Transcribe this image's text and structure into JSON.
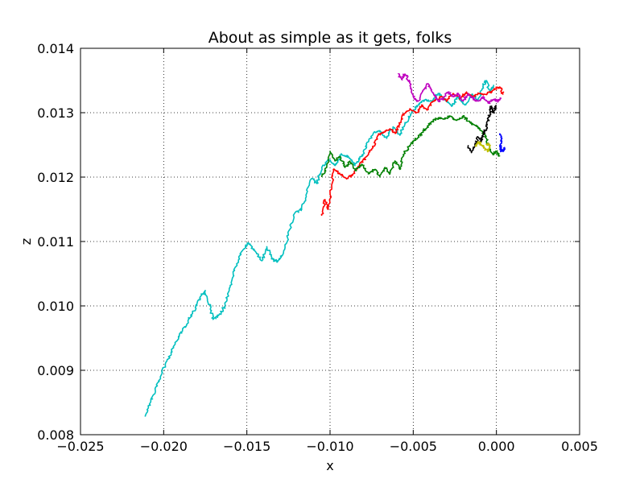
{
  "chart_data": {
    "type": "line",
    "title": "About as simple as it gets, folks",
    "xlabel": "x",
    "ylabel": "z",
    "xlim": [
      -0.025,
      0.005
    ],
    "ylim": [
      0.008,
      0.014
    ],
    "x_ticks": [
      -0.025,
      -0.02,
      -0.015,
      -0.01,
      -0.005,
      0.0,
      0.005
    ],
    "x_tick_labels": [
      "−0.025",
      "−0.020",
      "−0.015",
      "−0.010",
      "−0.005",
      "0.000",
      "0.005"
    ],
    "y_ticks": [
      0.008,
      0.009,
      0.01,
      0.011,
      0.012,
      0.013,
      0.014
    ],
    "y_tick_labels": [
      "0.008",
      "0.009",
      "0.010",
      "0.011",
      "0.012",
      "0.013",
      "0.014"
    ],
    "grid": true,
    "grid_style": "dotted",
    "series": [
      {
        "color": "#00bfbf",
        "points": [
          [
            -0.0211,
            0.00828
          ],
          [
            -0.0208,
            0.0085
          ],
          [
            -0.0205,
            0.00868
          ],
          [
            -0.0202,
            0.0089
          ],
          [
            -0.0198,
            0.00915
          ],
          [
            -0.0194,
            0.00935
          ],
          [
            -0.019,
            0.00958
          ],
          [
            -0.0186,
            0.00972
          ],
          [
            -0.0182,
            0.00992
          ],
          [
            -0.0178,
            0.01012
          ],
          [
            -0.0175,
            0.01024
          ],
          [
            -0.0172,
            0.00995
          ],
          [
            -0.017,
            0.0098
          ],
          [
            -0.0167,
            0.00985
          ],
          [
            -0.0163,
            0.01
          ],
          [
            -0.016,
            0.01032
          ],
          [
            -0.0157,
            0.0106
          ],
          [
            -0.0153,
            0.01085
          ],
          [
            -0.0149,
            0.01098
          ],
          [
            -0.0145,
            0.01085
          ],
          [
            -0.0141,
            0.0107
          ],
          [
            -0.0138,
            0.01092
          ],
          [
            -0.0135,
            0.01075
          ],
          [
            -0.0132,
            0.01068
          ],
          [
            -0.0128,
            0.01082
          ],
          [
            -0.0125,
            0.0111
          ],
          [
            -0.0121,
            0.01145
          ],
          [
            -0.0117,
            0.0115
          ],
          [
            -0.0114,
            0.01175
          ],
          [
            -0.0111,
            0.01198
          ],
          [
            -0.0108,
            0.0119
          ],
          [
            -0.0105,
            0.01215
          ],
          [
            -0.0101,
            0.01228
          ],
          [
            -0.0097,
            0.01218
          ],
          [
            -0.0093,
            0.01235
          ],
          [
            -0.0089,
            0.01232
          ],
          [
            -0.0085,
            0.01218
          ],
          [
            -0.0081,
            0.01232
          ],
          [
            -0.0078,
            0.0125
          ],
          [
            -0.0074,
            0.01268
          ],
          [
            -0.007,
            0.01272
          ],
          [
            -0.0066,
            0.0126
          ],
          [
            -0.0062,
            0.01278
          ],
          [
            -0.0058,
            0.01265
          ],
          [
            -0.0055,
            0.01282
          ],
          [
            -0.0051,
            0.013
          ],
          [
            -0.0047,
            0.01312
          ],
          [
            -0.0043,
            0.0132
          ],
          [
            -0.0039,
            0.01318
          ],
          [
            -0.0035,
            0.0133
          ],
          [
            -0.0031,
            0.01322
          ],
          [
            -0.0027,
            0.0131
          ],
          [
            -0.0023,
            0.01325
          ],
          [
            -0.0019,
            0.01312
          ],
          [
            -0.0015,
            0.01328
          ],
          [
            -0.0011,
            0.0132
          ],
          [
            -0.0008,
            0.0134
          ],
          [
            -0.0006,
            0.0135
          ],
          [
            -0.0004,
            0.01332
          ],
          [
            -0.0002,
            0.01342
          ]
        ]
      },
      {
        "color": "#ff0000",
        "points": [
          [
            -0.0105,
            0.0114
          ],
          [
            -0.0103,
            0.01165
          ],
          [
            -0.0101,
            0.0115
          ],
          [
            -0.0099,
            0.01185
          ],
          [
            -0.0098,
            0.01212
          ],
          [
            -0.0094,
            0.01205
          ],
          [
            -0.009,
            0.01198
          ],
          [
            -0.0086,
            0.01205
          ],
          [
            -0.0082,
            0.01222
          ],
          [
            -0.0078,
            0.01232
          ],
          [
            -0.0074,
            0.01248
          ],
          [
            -0.0071,
            0.01265
          ],
          [
            -0.0068,
            0.0127
          ],
          [
            -0.0064,
            0.01275
          ],
          [
            -0.0061,
            0.01268
          ],
          [
            -0.0058,
            0.01282
          ],
          [
            -0.0056,
            0.01298
          ],
          [
            -0.0052,
            0.01305
          ],
          [
            -0.0048,
            0.013
          ],
          [
            -0.0045,
            0.01312
          ],
          [
            -0.0042,
            0.01305
          ],
          [
            -0.0038,
            0.01318
          ],
          [
            -0.0034,
            0.01325
          ],
          [
            -0.003,
            0.01318
          ],
          [
            -0.0026,
            0.0133
          ],
          [
            -0.0022,
            0.01322
          ],
          [
            -0.0018,
            0.01332
          ],
          [
            -0.0014,
            0.01325
          ],
          [
            -0.001,
            0.0133
          ],
          [
            -0.0006,
            0.01328
          ],
          [
            -0.0002,
            0.01335
          ],
          [
            0.0002,
            0.0134
          ],
          [
            0.0004,
            0.01328
          ]
        ]
      },
      {
        "color": "#008000",
        "points": [
          [
            -0.0105,
            0.012
          ],
          [
            -0.0102,
            0.01215
          ],
          [
            -0.01,
            0.0124
          ],
          [
            -0.0097,
            0.01225
          ],
          [
            -0.0094,
            0.01232
          ],
          [
            -0.0091,
            0.01215
          ],
          [
            -0.0088,
            0.01225
          ],
          [
            -0.0085,
            0.0121
          ],
          [
            -0.0081,
            0.0122
          ],
          [
            -0.0077,
            0.01205
          ],
          [
            -0.0073,
            0.01212
          ],
          [
            -0.007,
            0.012
          ],
          [
            -0.0067,
            0.01215
          ],
          [
            -0.0064,
            0.01205
          ],
          [
            -0.0061,
            0.01225
          ],
          [
            -0.0058,
            0.01212
          ],
          [
            -0.0056,
            0.01235
          ],
          [
            -0.0053,
            0.01245
          ],
          [
            -0.005,
            0.01255
          ],
          [
            -0.0047,
            0.01262
          ],
          [
            -0.0044,
            0.0127
          ],
          [
            -0.0041,
            0.0128
          ],
          [
            -0.0038,
            0.01288
          ],
          [
            -0.0035,
            0.01292
          ],
          [
            -0.0031,
            0.0129
          ],
          [
            -0.0028,
            0.01295
          ],
          [
            -0.0024,
            0.01288
          ],
          [
            -0.002,
            0.01295
          ],
          [
            -0.0016,
            0.01285
          ],
          [
            -0.0012,
            0.0128
          ],
          [
            -0.0009,
            0.01272
          ],
          [
            -0.0006,
            0.0126
          ],
          [
            -0.0004,
            0.01245
          ],
          [
            -0.0002,
            0.01235
          ],
          [
            0.0,
            0.0124
          ],
          [
            0.0002,
            0.01232
          ]
        ]
      },
      {
        "color": "#bf00bf",
        "points": [
          [
            -0.0059,
            0.0136
          ],
          [
            -0.0057,
            0.01352
          ],
          [
            -0.0055,
            0.0136
          ],
          [
            -0.0052,
            0.01348
          ],
          [
            -0.005,
            0.01325
          ],
          [
            -0.0047,
            0.01318
          ],
          [
            -0.0044,
            0.01335
          ],
          [
            -0.0041,
            0.01345
          ],
          [
            -0.0038,
            0.0133
          ],
          [
            -0.0035,
            0.01318
          ],
          [
            -0.0032,
            0.01322
          ],
          [
            -0.0029,
            0.01332
          ],
          [
            -0.0026,
            0.01325
          ],
          [
            -0.0023,
            0.0133
          ],
          [
            -0.002,
            0.01318
          ],
          [
            -0.0017,
            0.0133
          ],
          [
            -0.0014,
            0.01322
          ],
          [
            -0.0011,
            0.01318
          ],
          [
            -0.0008,
            0.01325
          ],
          [
            -0.0005,
            0.01315
          ],
          [
            -0.0002,
            0.0132
          ],
          [
            0.0001,
            0.01318
          ],
          [
            0.0003,
            0.01322
          ]
        ]
      },
      {
        "color": "#000000",
        "points": [
          [
            -0.0017,
            0.01248
          ],
          [
            -0.0015,
            0.01238
          ],
          [
            -0.0013,
            0.0125
          ],
          [
            -0.0011,
            0.01262
          ],
          [
            -0.0009,
            0.01255
          ],
          [
            -0.0008,
            0.01268
          ],
          [
            -0.0006,
            0.01275
          ],
          [
            -0.0005,
            0.01288
          ],
          [
            -0.0004,
            0.013
          ],
          [
            -0.0003,
            0.0131
          ],
          [
            -0.0002,
            0.013
          ],
          [
            0.0,
            0.01312
          ]
        ]
      },
      {
        "color": "#0000ff",
        "points": [
          [
            0.0002,
            0.01268
          ],
          [
            0.0003,
            0.01258
          ],
          [
            0.0002,
            0.01248
          ],
          [
            0.0003,
            0.0124
          ],
          [
            0.0005,
            0.01245
          ],
          [
            0.0004,
            0.01242
          ]
        ]
      },
      {
        "color": "#bfbf00",
        "points": [
          [
            -0.0013,
            0.01248
          ],
          [
            -0.0011,
            0.01255
          ],
          [
            -0.0009,
            0.0125
          ],
          [
            -0.0007,
            0.01245
          ],
          [
            -0.0005,
            0.0124
          ],
          [
            -0.0004,
            0.01248
          ],
          [
            -0.0006,
            0.01252
          ]
        ]
      }
    ]
  }
}
